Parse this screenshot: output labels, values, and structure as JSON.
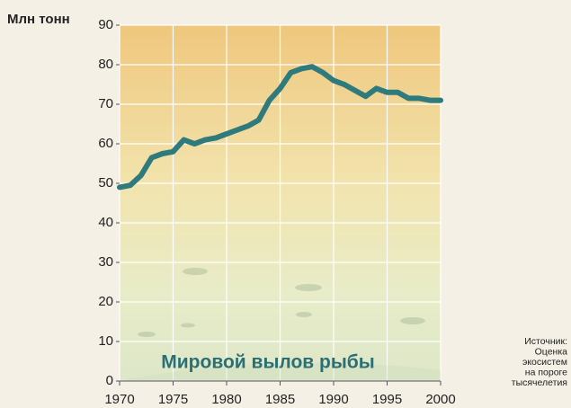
{
  "chart_data": {
    "type": "line",
    "title": "Мировой вылов рыбы",
    "y_label": "Млн тонн",
    "source": [
      "Источник:",
      "Оценка",
      "экосистем",
      "на пороге",
      "тысячелетия"
    ],
    "x": [
      1970,
      1971,
      1972,
      1973,
      1974,
      1975,
      1976,
      1977,
      1978,
      1979,
      1980,
      1981,
      1982,
      1983,
      1984,
      1985,
      1986,
      1987,
      1988,
      1989,
      1990,
      1991,
      1992,
      1993,
      1994,
      1995,
      1996,
      1997,
      1998,
      1999,
      2000
    ],
    "series": [
      {
        "name": "Мировой вылов рыбы",
        "color": "#2e7a7c",
        "values": [
          49,
          49.5,
          52,
          56.5,
          57.5,
          58,
          61,
          60,
          61,
          61.5,
          62.5,
          63.5,
          64.5,
          66,
          71,
          74,
          78,
          79,
          79.5,
          78,
          76,
          75,
          73.5,
          72,
          74,
          73,
          73,
          71.5,
          71.5,
          71,
          71
        ]
      }
    ],
    "xlim": [
      1970,
      2000
    ],
    "ylim": [
      0,
      90
    ],
    "xticks": [
      1970,
      1975,
      1980,
      1985,
      1990,
      1995,
      2000
    ],
    "yticks": [
      0,
      10,
      20,
      30,
      40,
      50,
      60,
      70,
      80,
      90
    ],
    "grid": true
  }
}
